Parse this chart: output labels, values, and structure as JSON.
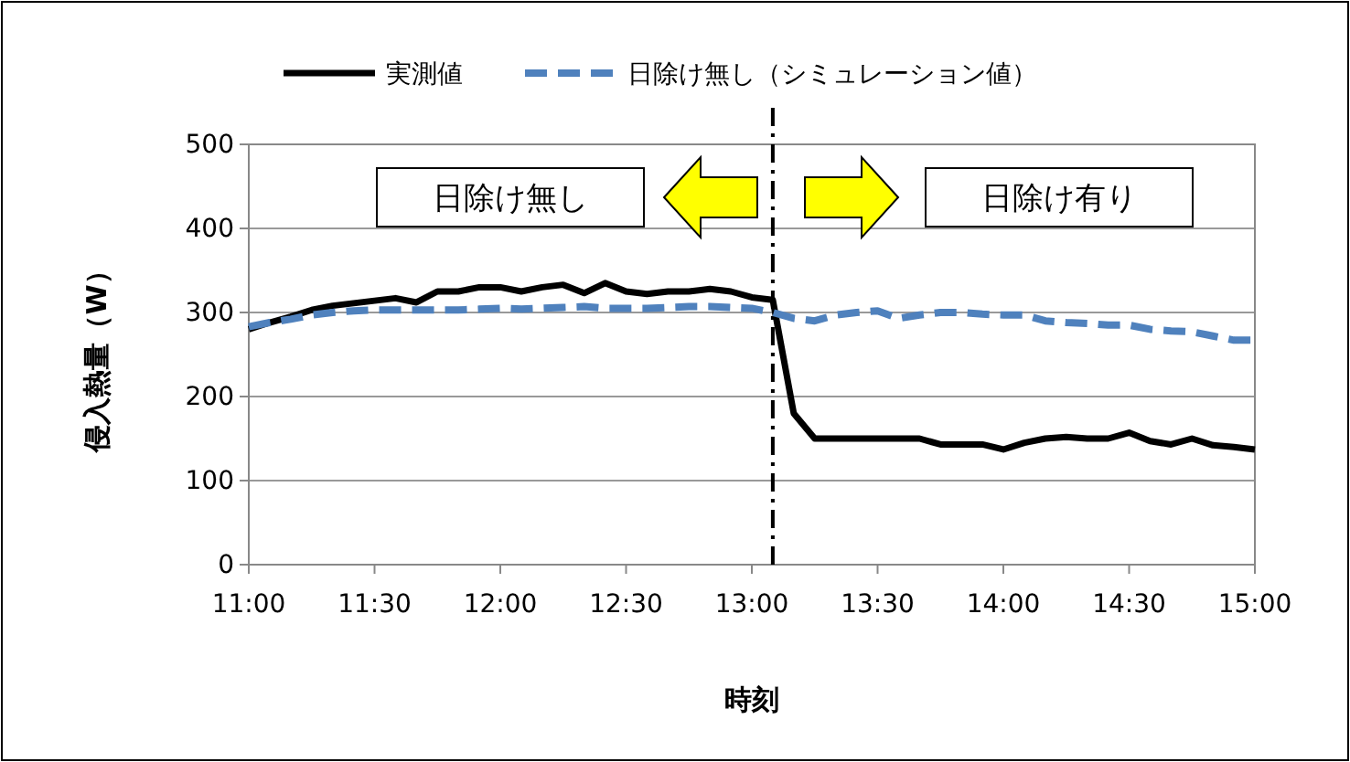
{
  "chart_data": {
    "type": "line",
    "xlabel": "時刻",
    "ylabel": "侵入熱量（W）",
    "x": [
      11,
      11.0833,
      11.1667,
      11.25,
      11.3333,
      11.4167,
      11.5,
      11.5833,
      11.6667,
      11.75,
      11.8333,
      11.9167,
      12,
      12.0833,
      12.1667,
      12.25,
      12.3333,
      12.4167,
      12.5,
      12.5833,
      12.6667,
      12.75,
      12.8333,
      12.9167,
      13,
      13.0833,
      13.1667,
      13.25,
      13.3333,
      13.4167,
      13.5,
      13.5833,
      13.6667,
      13.75,
      13.8333,
      13.9167,
      14,
      14.0833,
      14.1667,
      14.25,
      14.3333,
      14.4167,
      14.5,
      14.5833,
      14.6667,
      14.75,
      14.8333,
      14.9167,
      15
    ],
    "series": [
      {
        "name": "実測値",
        "color": "#000000",
        "line_style": "solid",
        "values": [
          280,
          288,
          295,
          303,
          308,
          311,
          314,
          317,
          312,
          325,
          325,
          330,
          330,
          325,
          330,
          333,
          323,
          335,
          325,
          322,
          325,
          325,
          328,
          325,
          318,
          315,
          180,
          150,
          150,
          150,
          150,
          150,
          150,
          143,
          143,
          143,
          137,
          145,
          150,
          152,
          150,
          150,
          157,
          147,
          143,
          150,
          142,
          140,
          137
        ]
      },
      {
        "name": "日除け無し（シミュレーション値）",
        "color": "#4f81bd",
        "line_style": "dashed",
        "values": [
          283,
          288,
          292,
          297,
          300,
          302,
          303,
          303,
          303,
          303,
          303,
          304,
          305,
          304,
          305,
          306,
          307,
          305,
          305,
          305,
          306,
          307,
          307,
          306,
          305,
          300,
          293,
          290,
          297,
          300,
          302,
          293,
          297,
          300,
          300,
          298,
          297,
          297,
          290,
          288,
          287,
          285,
          285,
          280,
          278,
          277,
          272,
          267,
          267
        ]
      }
    ],
    "xlim": [
      11,
      15
    ],
    "xticks": [
      {
        "value": 11,
        "label": "11:00"
      },
      {
        "value": 11.5,
        "label": "11:30"
      },
      {
        "value": 12,
        "label": "12:00"
      },
      {
        "value": 12.5,
        "label": "12:30"
      },
      {
        "value": 13,
        "label": "13:00"
      },
      {
        "value": 13.5,
        "label": "13:30"
      },
      {
        "value": 14,
        "label": "14:00"
      },
      {
        "value": 14.5,
        "label": "14:30"
      },
      {
        "value": 15,
        "label": "15:00"
      }
    ],
    "ylim": [
      0,
      500
    ],
    "yticks": [
      0,
      100,
      200,
      300,
      400,
      500
    ],
    "grid": "y",
    "legend": "top",
    "marker": "none",
    "ref_lines": [
      {
        "axis": "x",
        "value": 13.0833,
        "color": "#000000",
        "line_style": "dashdot"
      }
    ],
    "annotations": [
      "日除け無し",
      "日除け有り"
    ]
  }
}
